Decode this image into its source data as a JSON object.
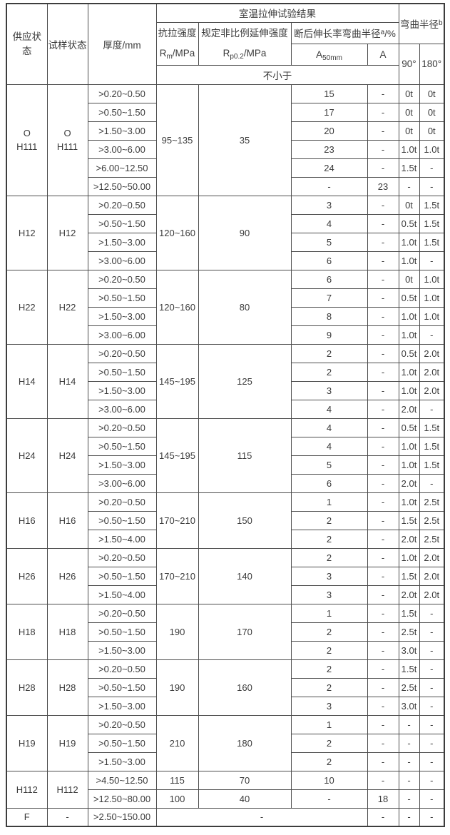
{
  "page": {
    "background": "#ffffff",
    "text_color": "#3b3b3b",
    "border_color": "#4d4d4d"
  },
  "table": {
    "header": {
      "supply_state": "供应状态",
      "sample_state": "试样状态",
      "thickness": "厚度/mm",
      "tensile_group": "室温拉伸试验结果",
      "rm": {
        "label": "抗拉强度",
        "base": "R",
        "sub": "m",
        "rest": "/MPa"
      },
      "rp": {
        "label": "规定非比例延伸强度",
        "base": "R",
        "sub": "p0.2",
        "rest": "/MPa"
      },
      "elongation": {
        "text": "断后伸长率弯曲半径",
        "sup": "a",
        "rest": "/%"
      },
      "a50": {
        "base": "A",
        "sub": "50mm"
      },
      "a_label": "A",
      "bend": {
        "text": "弯曲半径",
        "sup": "b"
      },
      "not_less_than": "不小于",
      "deg90": "90°",
      "deg180": "180°"
    },
    "blocks": [
      {
        "supply": [
          "O",
          "H111"
        ],
        "sample": [
          "O",
          "H111"
        ],
        "rm": "95~135",
        "rp": "35",
        "rows": [
          {
            "thickness": ">0.20~0.50",
            "a50": "15",
            "a": "-",
            "b90": "0t",
            "b180": "0t"
          },
          {
            "thickness": ">0.50~1.50",
            "a50": "17",
            "a": "-",
            "b90": "0t",
            "b180": "0t"
          },
          {
            "thickness": ">1.50~3.00",
            "a50": "20",
            "a": "-",
            "b90": "0t",
            "b180": "0t"
          },
          {
            "thickness": ">3.00~6.00",
            "a50": "23",
            "a": "-",
            "b90": "1.0t",
            "b180": "1.0t"
          },
          {
            "thickness": ">6.00~12.50",
            "a50": "24",
            "a": "-",
            "b90": "1.5t",
            "b180": "-"
          },
          {
            "thickness": ">12.50~50.00",
            "a50": "-",
            "a": "23",
            "b90": "-",
            "b180": "-"
          }
        ]
      },
      {
        "supply": [
          "H12"
        ],
        "sample": [
          "H12"
        ],
        "rm": "120~160",
        "rp": "90",
        "rows": [
          {
            "thickness": ">0.20~0.50",
            "a50": "3",
            "a": "-",
            "b90": "0t",
            "b180": "1.5t"
          },
          {
            "thickness": ">0.50~1.50",
            "a50": "4",
            "a": "-",
            "b90": "0.5t",
            "b180": "1.5t"
          },
          {
            "thickness": ">1.50~3.00",
            "a50": "5",
            "a": "-",
            "b90": "1.0t",
            "b180": "1.5t"
          },
          {
            "thickness": ">3.00~6.00",
            "a50": "6",
            "a": "-",
            "b90": "1.0t",
            "b180": "-"
          }
        ]
      },
      {
        "supply": [
          "H22"
        ],
        "sample": [
          "H22"
        ],
        "rm": "120~160",
        "rp": "80",
        "rows": [
          {
            "thickness": ">0.20~0.50",
            "a50": "6",
            "a": "-",
            "b90": "0t",
            "b180": "1.0t"
          },
          {
            "thickness": ">0.50~1.50",
            "a50": "7",
            "a": "-",
            "b90": "0.5t",
            "b180": "1.0t"
          },
          {
            "thickness": ">1.50~3.00",
            "a50": "8",
            "a": "-",
            "b90": "1.0t",
            "b180": "1.0t"
          },
          {
            "thickness": ">3.00~6.00",
            "a50": "9",
            "a": "-",
            "b90": "1.0t",
            "b180": "-"
          }
        ]
      },
      {
        "supply": [
          "H14"
        ],
        "sample": [
          "H14"
        ],
        "rm": "145~195",
        "rp": "125",
        "rows": [
          {
            "thickness": ">0.20~0.50",
            "a50": "2",
            "a": "-",
            "b90": "0.5t",
            "b180": "2.0t"
          },
          {
            "thickness": ">0.50~1.50",
            "a50": "2",
            "a": "-",
            "b90": "1.0t",
            "b180": "2.0t"
          },
          {
            "thickness": ">1.50~3.00",
            "a50": "3",
            "a": "-",
            "b90": "1.0t",
            "b180": "2.0t"
          },
          {
            "thickness": ">3.00~6.00",
            "a50": "4",
            "a": "-",
            "b90": "2.0t",
            "b180": "-"
          }
        ]
      },
      {
        "supply": [
          "H24"
        ],
        "sample": [
          "H24"
        ],
        "rm": "145~195",
        "rp": "115",
        "rows": [
          {
            "thickness": ">0.20~0.50",
            "a50": "4",
            "a": "-",
            "b90": "0.5t",
            "b180": "1.5t"
          },
          {
            "thickness": ">0.50~1.50",
            "a50": "4",
            "a": "-",
            "b90": "1.0t",
            "b180": "1.5t"
          },
          {
            "thickness": ">1.50~3.00",
            "a50": "5",
            "a": "-",
            "b90": "1.0t",
            "b180": "1.5t"
          },
          {
            "thickness": ">3.00~6.00",
            "a50": "6",
            "a": "-",
            "b90": "2.0t",
            "b180": "-"
          }
        ]
      },
      {
        "supply": [
          "H16"
        ],
        "sample": [
          "H16"
        ],
        "rm": "170~210",
        "rp": "150",
        "rows": [
          {
            "thickness": ">0.20~0.50",
            "a50": "1",
            "a": "-",
            "b90": "1.0t",
            "b180": "2.5t"
          },
          {
            "thickness": ">0.50~1.50",
            "a50": "2",
            "a": "-",
            "b90": "1.5t",
            "b180": "2.5t"
          },
          {
            "thickness": ">1.50~4.00",
            "a50": "2",
            "a": "-",
            "b90": "2.0t",
            "b180": "2.5t"
          }
        ]
      },
      {
        "supply": [
          "H26"
        ],
        "sample": [
          "H26"
        ],
        "rm": "170~210",
        "rp": "140",
        "rows": [
          {
            "thickness": ">0.20~0.50",
            "a50": "2",
            "a": "-",
            "b90": "1.0t",
            "b180": "2.0t"
          },
          {
            "thickness": ">0.50~1.50",
            "a50": "3",
            "a": "-",
            "b90": "1.5t",
            "b180": "2.0t"
          },
          {
            "thickness": ">1.50~4.00",
            "a50": "3",
            "a": "-",
            "b90": "2.0t",
            "b180": "2.0t"
          }
        ]
      },
      {
        "supply": [
          "H18"
        ],
        "sample": [
          "H18"
        ],
        "rm": "190",
        "rp": "170",
        "rows": [
          {
            "thickness": ">0.20~0.50",
            "a50": "1",
            "a": "-",
            "b90": "1.5t",
            "b180": "-"
          },
          {
            "thickness": ">0.50~1.50",
            "a50": "2",
            "a": "-",
            "b90": "2.5t",
            "b180": "-"
          },
          {
            "thickness": ">1.50~3.00",
            "a50": "2",
            "a": "-",
            "b90": "3.0t",
            "b180": "-"
          }
        ]
      },
      {
        "supply": [
          "H28"
        ],
        "sample": [
          "H28"
        ],
        "rm": "190",
        "rp": "160",
        "rows": [
          {
            "thickness": ">0.20~0.50",
            "a50": "2",
            "a": "-",
            "b90": "1.5t",
            "b180": "-"
          },
          {
            "thickness": ">0.50~1.50",
            "a50": "2",
            "a": "-",
            "b90": "2.5t",
            "b180": "-"
          },
          {
            "thickness": ">1.50~3.00",
            "a50": "3",
            "a": "-",
            "b90": "3.0t",
            "b180": "-"
          }
        ]
      },
      {
        "supply": [
          "H19"
        ],
        "sample": [
          "H19"
        ],
        "rm": "210",
        "rp": "180",
        "rows": [
          {
            "thickness": ">0.20~0.50",
            "a50": "1",
            "a": "-",
            "b90": "-",
            "b180": "-"
          },
          {
            "thickness": ">0.50~1.50",
            "a50": "2",
            "a": "-",
            "b90": "-",
            "b180": "-"
          },
          {
            "thickness": ">1.50~3.00",
            "a50": "2",
            "a": "-",
            "b90": "-",
            "b180": "-"
          }
        ]
      },
      {
        "supply": [
          "H112"
        ],
        "sample": [
          "H112"
        ],
        "rows": [
          {
            "thickness": ">4.50~12.50",
            "rm": "115",
            "rp": "70",
            "a50": "10",
            "a": "-",
            "b90": "-",
            "b180": "-"
          },
          {
            "thickness": ">12.50~80.00",
            "rm": "100",
            "rp": "40",
            "a50": "-",
            "a": "18",
            "b90": "-",
            "b180": "-"
          }
        ]
      },
      {
        "supply": [
          "F"
        ],
        "sample": [
          "-"
        ],
        "rows": [
          {
            "thickness": ">2.50~150.00",
            "span3": "-",
            "a": "-",
            "b90": "-",
            "b180": "-"
          }
        ]
      }
    ]
  }
}
